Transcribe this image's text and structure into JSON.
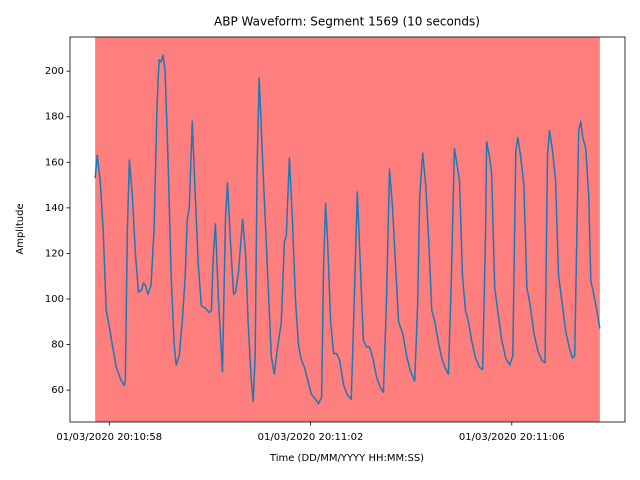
{
  "chart_data": {
    "type": "line",
    "title": "ABP Waveform: Segment 1569 (10 seconds)",
    "xlabel": "Time (DD/MM/YYYY HH:MM:SS)",
    "ylabel": "Amplitude",
    "xlim": [
      57.22,
      68.25
    ],
    "ylim": [
      46,
      215
    ],
    "xticks": [
      {
        "value": 58,
        "label": "01/03/2020 20:10:58"
      },
      {
        "value": 62,
        "label": "01/03/2020 20:11:02"
      },
      {
        "value": 66,
        "label": "01/03/2020 20:11:06"
      }
    ],
    "yticks": [
      60,
      80,
      100,
      120,
      140,
      160,
      180,
      200
    ],
    "span": {
      "x": [
        57.72,
        67.75
      ],
      "color": "#ff0000",
      "alpha": 0.5
    },
    "series": [
      {
        "color": "#1f77b4",
        "x": [
          57.72,
          57.76,
          57.82,
          57.88,
          57.94,
          58.0,
          58.06,
          58.14,
          58.24,
          58.3,
          58.32,
          58.36,
          58.4,
          58.46,
          58.52,
          58.58,
          58.64,
          58.68,
          58.72,
          58.77,
          58.83,
          58.89,
          58.95,
          58.99,
          59.03,
          59.07,
          59.11,
          59.17,
          59.23,
          59.29,
          59.33,
          59.39,
          59.45,
          59.51,
          59.55,
          59.59,
          59.65,
          59.71,
          59.77,
          59.83,
          59.91,
          59.99,
          60.03,
          60.07,
          60.11,
          60.17,
          60.25,
          60.31,
          60.35,
          60.41,
          60.47,
          60.51,
          60.57,
          60.65,
          60.71,
          60.76,
          60.82,
          60.86,
          60.9,
          60.94,
          60.98,
          61.04,
          61.1,
          61.16,
          61.22,
          61.28,
          61.34,
          61.42,
          61.48,
          61.52,
          61.58,
          61.64,
          61.7,
          61.76,
          61.82,
          61.88,
          61.96,
          62.02,
          62.1,
          62.16,
          62.22,
          62.26,
          62.3,
          62.34,
          62.4,
          62.46,
          62.52,
          62.58,
          62.66,
          62.73,
          62.81,
          62.87,
          62.93,
          62.99,
          63.05,
          63.11,
          63.17,
          63.23,
          63.31,
          63.39,
          63.45,
          63.51,
          63.57,
          63.63,
          63.69,
          63.75,
          63.83,
          63.91,
          63.99,
          64.07,
          64.13,
          64.17,
          64.23,
          64.29,
          64.35,
          64.41,
          64.47,
          64.55,
          64.61,
          64.67,
          64.74,
          64.8,
          64.86,
          64.92,
          64.96,
          65.02,
          65.08,
          65.14,
          65.2,
          65.28,
          65.36,
          65.42,
          65.48,
          65.5,
          65.56,
          65.6,
          65.66,
          65.72,
          65.8,
          65.88,
          65.96,
          66.02,
          66.08,
          66.12,
          66.18,
          66.24,
          66.3,
          66.36,
          66.44,
          66.52,
          66.6,
          66.66,
          66.71,
          66.75,
          66.81,
          66.87,
          66.93,
          66.99,
          67.07,
          67.15,
          67.21,
          67.25,
          67.33,
          67.37,
          67.41,
          67.47,
          67.53,
          67.57,
          67.63,
          67.69,
          67.75
        ],
        "values": [
          153,
          163,
          152,
          130,
          95,
          88,
          80,
          70,
          64,
          62,
          65,
          130,
          161,
          145,
          120,
          103,
          104,
          107,
          106,
          102,
          106,
          130,
          185,
          205,
          204,
          207,
          200,
          160,
          110,
          80,
          71,
          75,
          90,
          110,
          135,
          140,
          178,
          145,
          115,
          97,
          96,
          94,
          95,
          120,
          133,
          100,
          68,
          135,
          151,
          125,
          102,
          103,
          112,
          135,
          120,
          90,
          65,
          55,
          75,
          160,
          197,
          165,
          135,
          105,
          75,
          67,
          78,
          90,
          125,
          128,
          162,
          135,
          100,
          80,
          73,
          70,
          63,
          58,
          56,
          54,
          57,
          115,
          142,
          125,
          90,
          76,
          76,
          73,
          62,
          58,
          56,
          100,
          147,
          115,
          82,
          79,
          79,
          75,
          66,
          61,
          59,
          100,
          157,
          140,
          115,
          90,
          85,
          75,
          68,
          64,
          98,
          145,
          164,
          150,
          125,
          95,
          90,
          80,
          74,
          70,
          67,
          110,
          166,
          158,
          152,
          110,
          95,
          90,
          82,
          74,
          70,
          69,
          130,
          169,
          162,
          155,
          105,
          95,
          82,
          74,
          71,
          75,
          165,
          171,
          162,
          150,
          105,
          98,
          85,
          77,
          73,
          72,
          163,
          174,
          165,
          152,
          110,
          100,
          86,
          78,
          74,
          75,
          174,
          178,
          171,
          166,
          145,
          108,
          102,
          95,
          87
        ]
      }
    ]
  }
}
